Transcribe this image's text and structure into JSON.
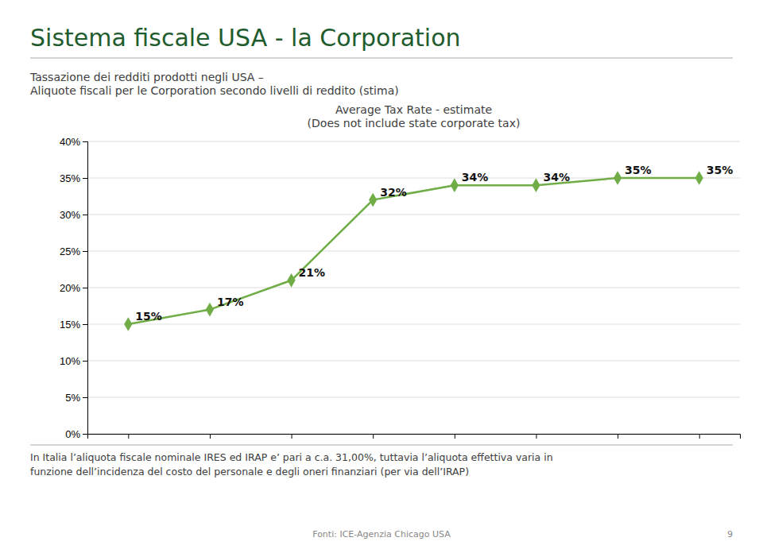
{
  "chart_data": {
    "type": "line",
    "title": "Sistema fiscale USA - la Corporation",
    "subtitle": [
      "Tassazione dei redditi prodotti negli USA –",
      "Aliquote fiscali per le Corporation secondo livelli di reddito (stima)"
    ],
    "annotations": [
      "Average Tax Rate - estimate",
      "(Does not include state corporate tax)",
      "In Italia l’aliquota fiscale nominale IRES ed IRAP e’ pari a c.a. 31,00%, tuttavia l’aliquota effettiva varia in",
      "funzione dell’incidenza del costo del personale  e degli oneri finanziari (per via dell’IRAP)",
      "Fonti: ICE-Agenzia Chicago USA",
      "9"
    ],
    "x": [
      1,
      2,
      3,
      4,
      5,
      6,
      7,
      8
    ],
    "values": [
      0.15,
      0.17,
      0.21,
      0.32,
      0.34,
      0.34,
      0.35,
      0.35
    ],
    "value_labels": [
      "15%",
      "17%",
      "21%",
      "32%",
      "34%",
      "34%",
      "35%",
      "35%"
    ],
    "data_labels": true,
    "color": "#70AD47",
    "marker": "diamond",
    "xlim": [
      0.5,
      8.5
    ],
    "xticks": [
      1,
      2,
      3,
      4,
      5,
      6,
      7,
      8
    ],
    "ylim": [
      0.0,
      0.4
    ],
    "yticks": [
      {
        "value": 0.0,
        "label": "0%"
      },
      {
        "value": 0.05,
        "label": "5%"
      },
      {
        "value": 0.1,
        "label": "10%"
      },
      {
        "value": 0.15,
        "label": "15%"
      },
      {
        "value": 0.2,
        "label": "20%"
      },
      {
        "value": 0.25,
        "label": "25%"
      },
      {
        "value": 0.3,
        "label": "30%"
      },
      {
        "value": 0.35,
        "label": "35%"
      },
      {
        "value": 0.4,
        "label": "40%"
      }
    ],
    "tick_labels": "y",
    "grid": true
  }
}
